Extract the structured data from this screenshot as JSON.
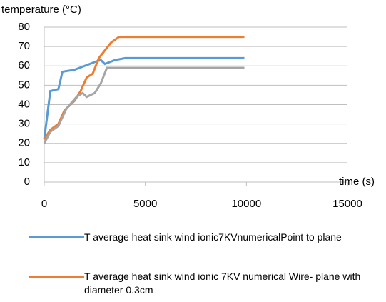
{
  "chart_data": {
    "type": "line",
    "ylabel": "temperature (°C)",
    "xlabel": "time (s)",
    "xlim": [
      0,
      15000
    ],
    "xticks": [
      0,
      5000,
      10000,
      15000
    ],
    "ylim": [
      0,
      80
    ],
    "yticks": [
      0,
      10,
      20,
      30,
      40,
      50,
      60,
      70,
      80
    ],
    "grid": true,
    "series": [
      {
        "name": "T average heat sink wind ionic7KVnumericalPoint to plane",
        "color": "#5b9bd5",
        "x": [
          0,
          300,
          700,
          900,
          1500,
          2000,
          2500,
          2800,
          3000,
          3500,
          4000,
          6000,
          8000,
          9900
        ],
        "values": [
          22,
          47,
          48,
          57,
          58,
          60,
          62,
          63,
          61,
          63,
          64,
          64,
          64,
          64
        ]
      },
      {
        "name": "T average heat sink wind ionic 7KV numerical Wire- plane with diameter 0.3cm",
        "color": "#ed7d31",
        "x": [
          0,
          300,
          700,
          1000,
          1500,
          1800,
          2100,
          2400,
          2700,
          3000,
          3300,
          3700,
          6000,
          8000,
          9900
        ],
        "values": [
          22,
          27,
          30,
          37,
          42,
          47,
          54,
          56,
          64,
          68,
          72,
          75,
          75,
          75,
          75
        ]
      },
      {
        "color": "#a5a5a5",
        "x": [
          0,
          300,
          700,
          1100,
          1600,
          1900,
          2100,
          2500,
          2800,
          3100,
          4000,
          6000,
          8000,
          9900
        ],
        "values": [
          20,
          26,
          29,
          38,
          44,
          46,
          44,
          46,
          51,
          59,
          59,
          59,
          59,
          59
        ]
      }
    ]
  }
}
